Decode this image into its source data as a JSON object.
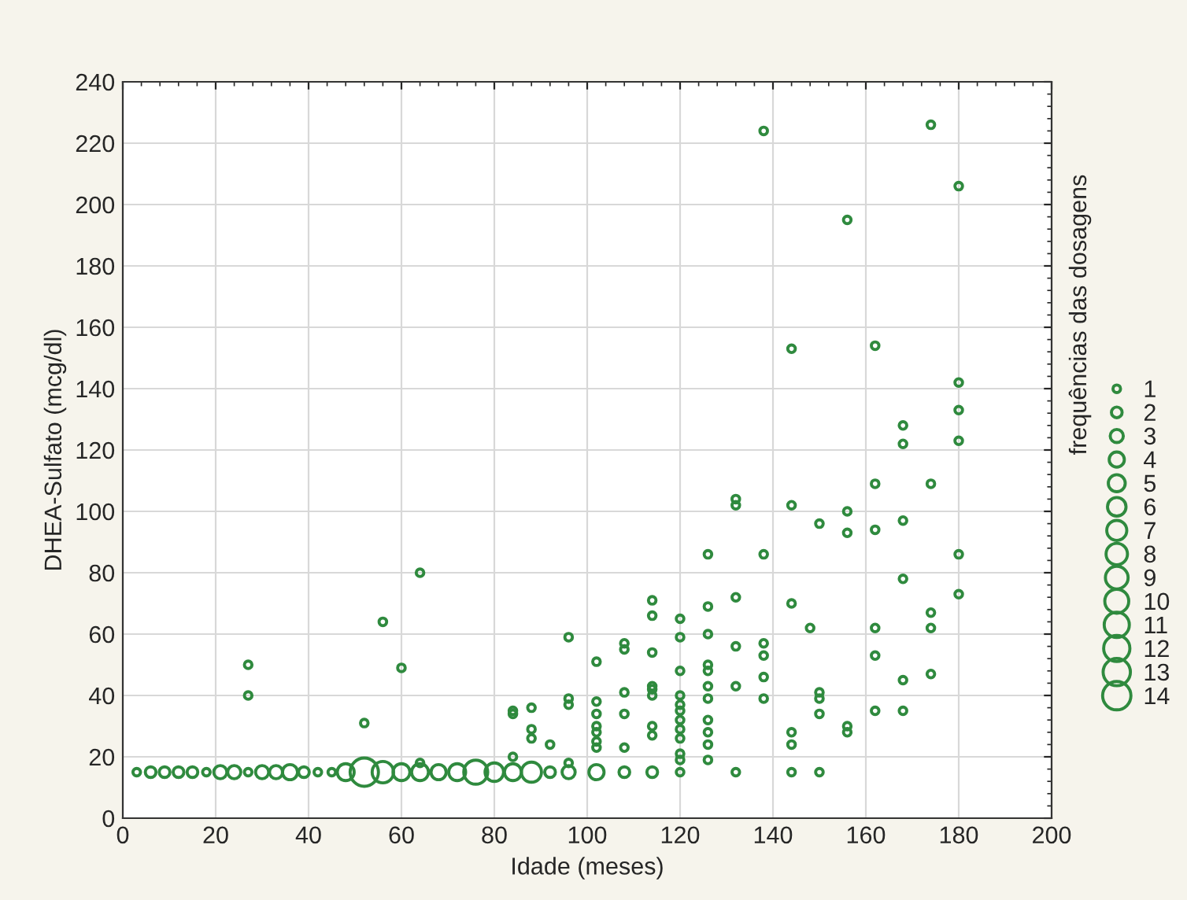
{
  "chart_data": {
    "type": "bubble",
    "xlabel": "Idade (meses)",
    "ylabel": "DHEA-Sulfato (mcg/dl)",
    "legend_title": "frequências das dosagens",
    "xlim": [
      0,
      200
    ],
    "xticks": [
      0,
      20,
      40,
      60,
      80,
      100,
      120,
      140,
      160,
      180,
      200
    ],
    "ylim": [
      0,
      240
    ],
    "yticks": [
      0,
      20,
      40,
      60,
      80,
      100,
      120,
      140,
      160,
      180,
      200,
      220,
      240
    ],
    "grid": true,
    "marker": "circle",
    "size_legend": [
      1,
      2,
      3,
      4,
      5,
      6,
      7,
      8,
      9,
      10,
      11,
      12,
      13,
      14
    ],
    "series": [
      {
        "color": "#2f8a3e",
        "x": [
          3,
          6,
          9,
          12,
          15,
          18,
          21,
          24,
          27,
          30,
          33,
          36,
          39,
          42,
          45,
          48,
          52,
          56,
          60,
          64,
          68,
          72,
          76,
          80,
          84,
          88,
          92,
          96,
          102,
          108,
          114,
          120,
          132,
          144,
          150,
          27,
          27,
          52,
          56,
          60,
          64,
          64,
          84,
          84,
          84,
          88,
          88,
          88,
          92,
          96,
          96,
          96,
          96,
          102,
          102,
          102,
          102,
          102,
          102,
          102,
          108,
          108,
          108,
          108,
          108,
          114,
          114,
          114,
          114,
          114,
          114,
          114,
          114,
          120,
          120,
          120,
          120,
          120,
          120,
          120,
          120,
          120,
          120,
          120,
          126,
          126,
          126,
          126,
          126,
          126,
          126,
          126,
          126,
          126,
          126,
          132,
          132,
          132,
          132,
          132,
          138,
          138,
          138,
          138,
          138,
          138,
          144,
          144,
          144,
          144,
          144,
          148,
          150,
          150,
          150,
          150,
          156,
          156,
          156,
          156,
          156,
          162,
          162,
          162,
          162,
          162,
          162,
          168,
          168,
          168,
          168,
          168,
          168,
          174,
          174,
          174,
          174,
          174,
          180,
          180,
          180,
          180,
          180,
          180
        ],
        "values": [
          15,
          15,
          15,
          15,
          15,
          15,
          15,
          15,
          15,
          15,
          15,
          15,
          15,
          15,
          15,
          15,
          15,
          15,
          15,
          15,
          15,
          15,
          15,
          15,
          15,
          15,
          15,
          15,
          15,
          15,
          15,
          15,
          15,
          15,
          15,
          50,
          40,
          31,
          64,
          49,
          80,
          18,
          35,
          34,
          20,
          36,
          29,
          26,
          24,
          59,
          39,
          37,
          18,
          51,
          38,
          34,
          30,
          28,
          25,
          23,
          57,
          55,
          41,
          34,
          23,
          71,
          66,
          54,
          43,
          42,
          40,
          30,
          27,
          65,
          59,
          48,
          40,
          37,
          35,
          32,
          29,
          26,
          21,
          19,
          86,
          69,
          60,
          50,
          48,
          43,
          39,
          32,
          28,
          24,
          19,
          104,
          102,
          72,
          56,
          43,
          224,
          86,
          57,
          53,
          46,
          39,
          153,
          102,
          70,
          28,
          24,
          62,
          96,
          41,
          39,
          34,
          195,
          100,
          93,
          30,
          28,
          154,
          109,
          94,
          62,
          53,
          35,
          128,
          122,
          97,
          78,
          45,
          35,
          226,
          109,
          67,
          62,
          47,
          206,
          142,
          133,
          123,
          86,
          73
        ],
        "sizes": [
          1,
          2,
          2,
          2,
          2,
          1,
          3,
          3,
          1,
          3,
          3,
          4,
          2,
          1,
          1,
          5,
          14,
          8,
          5,
          5,
          4,
          5,
          10,
          6,
          5,
          7,
          2,
          3,
          4,
          2,
          2,
          1,
          1,
          1,
          1,
          1,
          1,
          1,
          1,
          1,
          1,
          1,
          1,
          1,
          1,
          1,
          1,
          1,
          1,
          1,
          1,
          1,
          1,
          1,
          1,
          1,
          1,
          1,
          1,
          1,
          1,
          1,
          1,
          1,
          1,
          1,
          1,
          1,
          1,
          1,
          1,
          1,
          1,
          1,
          1,
          1,
          1,
          1,
          1,
          1,
          1,
          1,
          1,
          1,
          1,
          1,
          1,
          1,
          1,
          1,
          1,
          1,
          1,
          1,
          1,
          1,
          1,
          1,
          1,
          1,
          1,
          1,
          1,
          1,
          1,
          1,
          1,
          1,
          1,
          1,
          1,
          1,
          1,
          1,
          1,
          1,
          1,
          1,
          1,
          1,
          1,
          1,
          1,
          1,
          1,
          1,
          1,
          1,
          1,
          1,
          1,
          1,
          1,
          1,
          1,
          1,
          1,
          1,
          1,
          1,
          1,
          1,
          1,
          1
        ]
      }
    ]
  }
}
